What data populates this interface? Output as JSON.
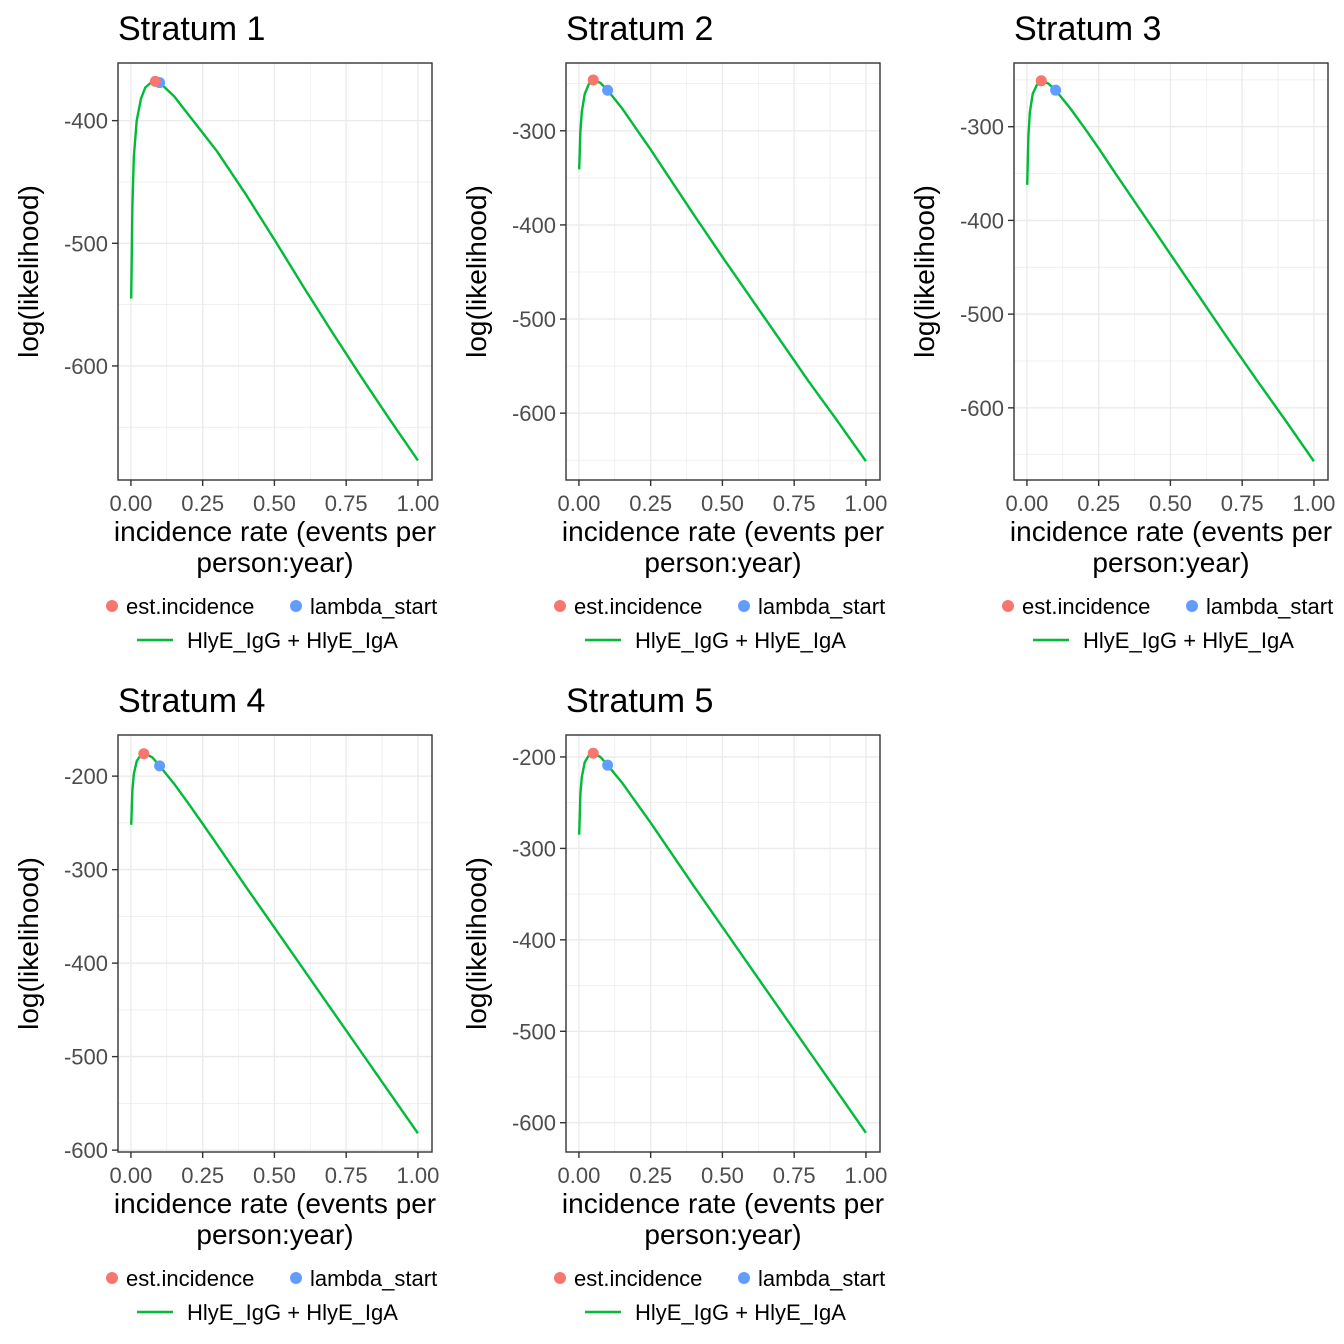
{
  "colors": {
    "est_incidence": "#F8766D",
    "curve": "#00BA38",
    "lambda_start": "#619CFF",
    "grid": "#EBEBEB",
    "border": "#333333"
  },
  "legend": {
    "items": [
      {
        "label": "est.incidence",
        "kind": "point",
        "color": "#F8766D"
      },
      {
        "label": "HlyE_IgG + HlyE_IgA",
        "kind": "line",
        "color": "#00BA38"
      },
      {
        "label": "lambda_start",
        "kind": "point",
        "color": "#619CFF"
      }
    ],
    "placement": "bottom"
  },
  "chart_data": [
    {
      "type": "line",
      "title": "Stratum 1",
      "xlabel": "incidence rate (events per person:year)",
      "ylabel": "log(likelihood)",
      "xlim": [
        -0.045,
        1.049
      ],
      "ylim": [
        -693,
        -353
      ],
      "xticks": [
        0,
        0.25,
        0.5,
        0.75,
        1
      ],
      "xtick_labels": [
        "0.00",
        "0.25",
        "0.50",
        "0.75",
        "1.00"
      ],
      "yticks": [
        -600,
        -500,
        -400
      ],
      "ytick_labels": [
        "-600",
        "-500",
        "-400"
      ],
      "grid": true,
      "x": [
        0.001,
        0.005,
        0.01,
        0.02,
        0.035,
        0.05,
        0.075,
        0.1,
        0.15,
        0.2,
        0.25,
        0.3,
        0.4,
        0.5,
        0.6,
        0.7,
        0.8,
        0.9,
        1.0
      ],
      "series": [
        {
          "name": "HlyE_IgG + HlyE_IgA",
          "values": [
            -545,
            -470,
            -430,
            -400,
            -382,
            -373,
            -368,
            -369,
            -380,
            -395,
            -410,
            -425,
            -460,
            -497,
            -535,
            -572,
            -608,
            -643,
            -677
          ]
        }
      ],
      "points": [
        {
          "name": "est.incidence",
          "x": 0.085,
          "y": -368
        },
        {
          "name": "lambda_start",
          "x": 0.1,
          "y": -369
        }
      ]
    },
    {
      "type": "line",
      "title": "Stratum 2",
      "xlabel": "incidence rate (events per person:year)",
      "ylabel": "log(likelihood)",
      "xlim": [
        -0.045,
        1.049
      ],
      "ylim": [
        -671,
        -228
      ],
      "xticks": [
        0,
        0.25,
        0.5,
        0.75,
        1
      ],
      "xtick_labels": [
        "0.00",
        "0.25",
        "0.50",
        "0.75",
        "1.00"
      ],
      "yticks": [
        -600,
        -500,
        -400,
        -300
      ],
      "ytick_labels": [
        "-600",
        "-500",
        "-400",
        "-300"
      ],
      "grid": true,
      "x": [
        0.001,
        0.005,
        0.01,
        0.02,
        0.035,
        0.05,
        0.075,
        0.1,
        0.15,
        0.2,
        0.25,
        0.3,
        0.4,
        0.5,
        0.6,
        0.7,
        0.8,
        0.9,
        1.0
      ],
      "series": [
        {
          "name": "HlyE_IgG + HlyE_IgA",
          "values": [
            -341,
            -300,
            -280,
            -261,
            -250,
            -246,
            -249,
            -257,
            -276,
            -298,
            -320,
            -343,
            -389,
            -434,
            -478,
            -522,
            -566,
            -608,
            -651
          ]
        }
      ],
      "points": [
        {
          "name": "est.incidence",
          "x": 0.05,
          "y": -246
        },
        {
          "name": "lambda_start",
          "x": 0.1,
          "y": -257
        }
      ]
    },
    {
      "type": "line",
      "title": "Stratum 3",
      "xlabel": "incidence rate (events per person:year)",
      "ylabel": "log(likelihood)",
      "xlim": [
        -0.045,
        1.049
      ],
      "ylim": [
        -677,
        -232
      ],
      "xticks": [
        0,
        0.25,
        0.5,
        0.75,
        1
      ],
      "xtick_labels": [
        "0.00",
        "0.25",
        "0.50",
        "0.75",
        "1.00"
      ],
      "yticks": [
        -600,
        -500,
        -400,
        -300
      ],
      "ytick_labels": [
        "-600",
        "-500",
        "-400",
        "-300"
      ],
      "grid": true,
      "x": [
        0.001,
        0.005,
        0.01,
        0.02,
        0.035,
        0.05,
        0.075,
        0.1,
        0.15,
        0.2,
        0.25,
        0.3,
        0.4,
        0.5,
        0.6,
        0.7,
        0.8,
        0.9,
        1.0
      ],
      "series": [
        {
          "name": "HlyE_IgG + HlyE_IgA",
          "values": [
            -362,
            -310,
            -285,
            -265,
            -255,
            -251,
            -254,
            -261,
            -280,
            -301,
            -323,
            -346,
            -391,
            -436,
            -481,
            -526,
            -570,
            -613,
            -657
          ]
        }
      ],
      "points": [
        {
          "name": "est.incidence",
          "x": 0.05,
          "y": -251
        },
        {
          "name": "lambda_start",
          "x": 0.1,
          "y": -261
        }
      ]
    },
    {
      "type": "line",
      "title": "Stratum 4",
      "xlabel": "incidence rate (events per person:year)",
      "ylabel": "log(likelihood)",
      "xlim": [
        -0.045,
        1.049
      ],
      "ylim": [
        -602,
        -156
      ],
      "xticks": [
        0,
        0.25,
        0.5,
        0.75,
        1
      ],
      "xtick_labels": [
        "0.00",
        "0.25",
        "0.50",
        "0.75",
        "1.00"
      ],
      "yticks": [
        -600,
        -500,
        -400,
        -300,
        -200
      ],
      "ytick_labels": [
        "-600",
        "-500",
        "-400",
        "-300",
        "-200"
      ],
      "grid": true,
      "x": [
        0.001,
        0.005,
        0.01,
        0.02,
        0.035,
        0.05,
        0.075,
        0.1,
        0.15,
        0.2,
        0.25,
        0.3,
        0.4,
        0.5,
        0.6,
        0.7,
        0.8,
        0.9,
        1.0
      ],
      "series": [
        {
          "name": "HlyE_IgG + HlyE_IgA",
          "values": [
            -252,
            -215,
            -198,
            -184,
            -177,
            -176,
            -180,
            -189,
            -208,
            -229,
            -251,
            -273,
            -318,
            -362,
            -406,
            -450,
            -494,
            -538,
            -582
          ]
        }
      ],
      "points": [
        {
          "name": "est.incidence",
          "x": 0.045,
          "y": -176
        },
        {
          "name": "lambda_start",
          "x": 0.1,
          "y": -189
        }
      ]
    },
    {
      "type": "line",
      "title": "Stratum 5",
      "xlabel": "incidence rate (events per person:year)",
      "ylabel": "log(likelihood)",
      "xlim": [
        -0.045,
        1.049
      ],
      "ylim": [
        -632,
        -176
      ],
      "xticks": [
        0,
        0.25,
        0.5,
        0.75,
        1
      ],
      "xtick_labels": [
        "0.00",
        "0.25",
        "0.50",
        "0.75",
        "1.00"
      ],
      "yticks": [
        -600,
        -500,
        -400,
        -300,
        -200
      ],
      "ytick_labels": [
        "-600",
        "-500",
        "-400",
        "-300",
        "-200"
      ],
      "grid": true,
      "x": [
        0.001,
        0.005,
        0.01,
        0.02,
        0.035,
        0.05,
        0.075,
        0.1,
        0.15,
        0.2,
        0.25,
        0.3,
        0.4,
        0.5,
        0.6,
        0.7,
        0.8,
        0.9,
        1.0
      ],
      "series": [
        {
          "name": "HlyE_IgG + HlyE_IgA",
          "values": [
            -285,
            -240,
            -222,
            -206,
            -198,
            -196,
            -200,
            -209,
            -228,
            -250,
            -272,
            -295,
            -341,
            -386,
            -431,
            -476,
            -521,
            -566,
            -611
          ]
        }
      ],
      "points": [
        {
          "name": "est.incidence",
          "x": 0.05,
          "y": -196
        },
        {
          "name": "lambda_start",
          "x": 0.1,
          "y": -209
        }
      ]
    }
  ]
}
